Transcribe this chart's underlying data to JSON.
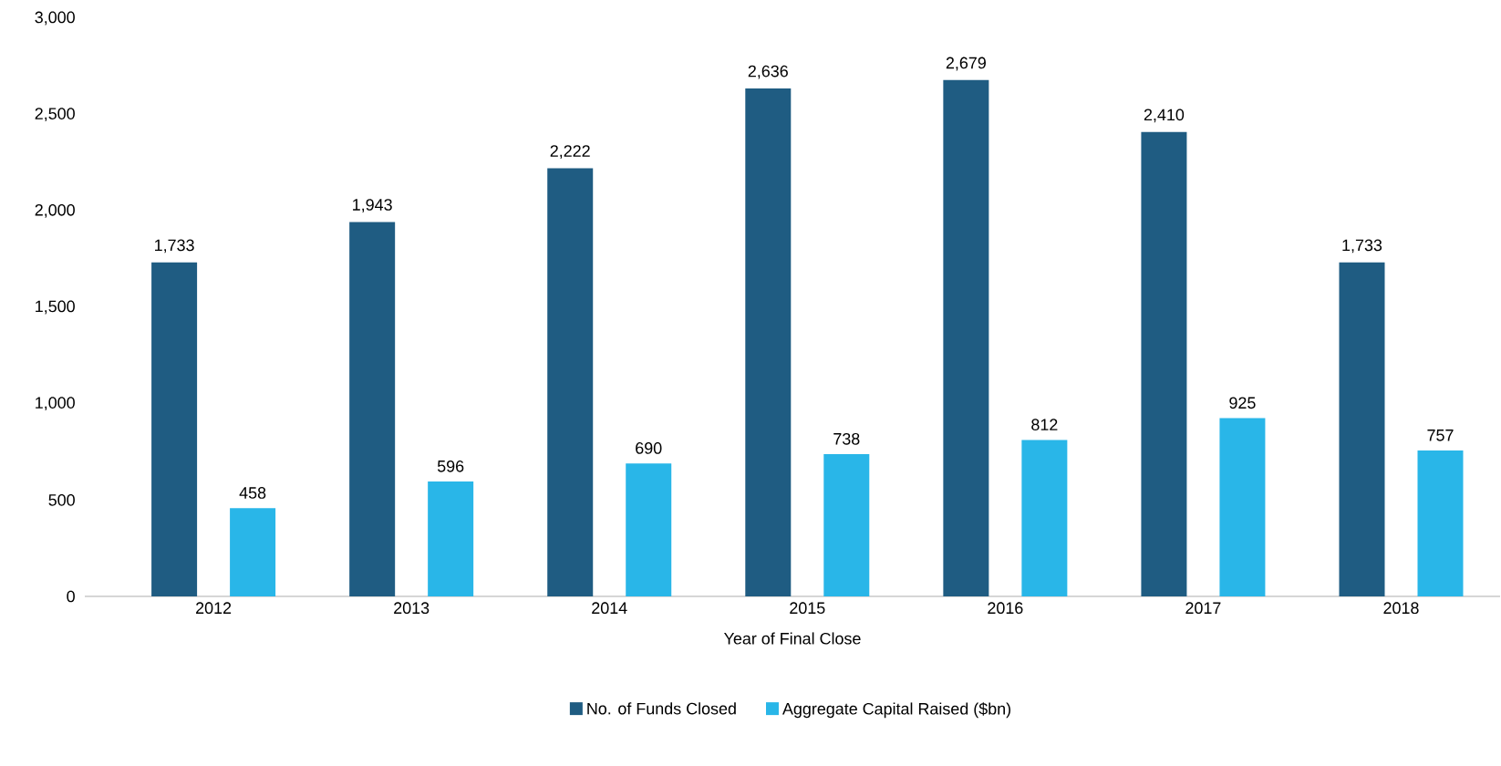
{
  "chart_data": {
    "type": "bar",
    "xlabel": "Year of Final Close",
    "categories": [
      "2012",
      "2013",
      "2014",
      "2015",
      "2016",
      "2017",
      "2018"
    ],
    "series": [
      {
        "name": "No. of Funds Closed",
        "color": "#1f5c82",
        "values": [
          1733,
          1943,
          2222,
          2636,
          2679,
          2410,
          1733
        ],
        "value_labels": [
          "1,733",
          "1,943",
          "2,222",
          "2,636",
          "2,679",
          "2,410",
          "1,733"
        ]
      },
      {
        "name": "Aggregate Capital Raised ($bn)",
        "color": "#29b6e8",
        "values": [
          458,
          596,
          690,
          738,
          812,
          925,
          757
        ],
        "value_labels": [
          "458",
          "596",
          "690",
          "738",
          "812",
          "925",
          "757"
        ]
      }
    ],
    "ylim": [
      0,
      3000
    ],
    "yticks": [
      0,
      500,
      {
        "value": 1000,
        "label": "1,000"
      },
      {
        "value": 1500,
        "label": "1,500"
      },
      {
        "value": 2000,
        "label": "2,000"
      },
      {
        "value": 2500,
        "label": "2,500"
      },
      {
        "value": 3000,
        "label": "3,000"
      }
    ],
    "grid": false,
    "legend": "bottom"
  }
}
